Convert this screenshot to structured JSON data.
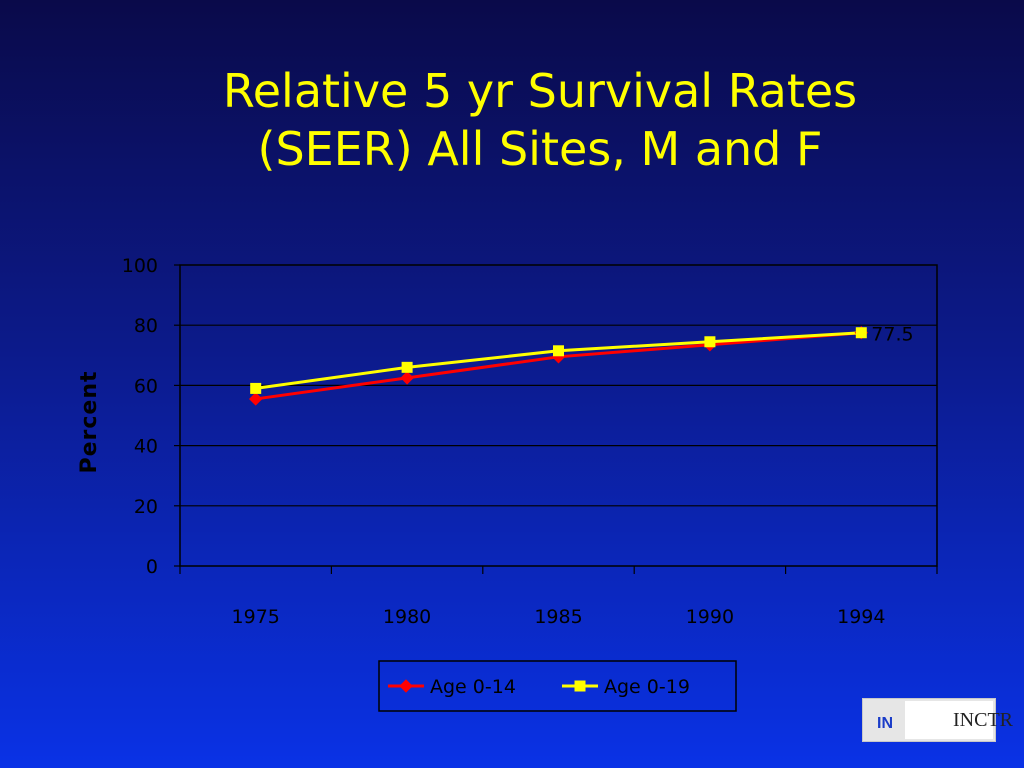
{
  "title_lines": [
    "Relative 5 yr Survival Rates",
    "(SEER) All Sites, M and F"
  ],
  "logo_text": "INCTR",
  "logo_visible_parts": {
    "left": "IN",
    "right": "INCTR"
  },
  "chart_data": {
    "type": "line",
    "title": "",
    "xlabel": "",
    "ylabel": "Percent",
    "categories": [
      "1975",
      "1980",
      "1985",
      "1990",
      "1994"
    ],
    "ylim": [
      0,
      100
    ],
    "yticks": [
      0,
      20,
      40,
      60,
      80,
      100
    ],
    "grid": true,
    "legend_placement": "bottom-center",
    "series": [
      {
        "name": "Age 0-14",
        "values": [
          55.5,
          62.5,
          69.5,
          73.5,
          77.5
        ],
        "color": "#ff0000",
        "marker": "diamond"
      },
      {
        "name": "Age 0-19",
        "values": [
          59,
          66,
          71.5,
          74.5,
          77.5
        ],
        "color": "#ffff00",
        "marker": "square"
      }
    ],
    "annotations": [
      {
        "category": "1994",
        "value": 77.5,
        "text": "77.5"
      }
    ]
  },
  "colors": {
    "background": "#0a32e6",
    "title": "#ffff00",
    "axis_text": "#000000"
  }
}
